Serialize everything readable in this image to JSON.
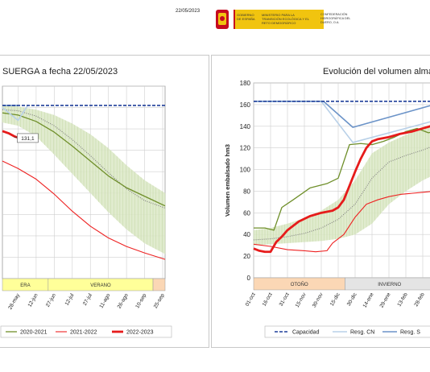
{
  "header": {
    "date": "22/05/2023",
    "logo_line1": "GOBIERNO DE ESPAÑA",
    "logo_line2": "MINISTERIO PARA LA TRANSICIÓN ECOLÓGICA Y EL RETO DEMOGRÁFICO",
    "logo_line3": "CONFEDERACIÓN HIDROGRÁFICA DEL DUERO, O.A."
  },
  "colors": {
    "capacity": "#1f3f9a",
    "resg_cn": "#b8d0e8",
    "resg_s": "#6b93c8",
    "y2020_2021": "#6f8f2a",
    "y2021_2022": "#ee2222",
    "y2022_2023": "#e61b1b",
    "band": "#dbe7c6",
    "median_marker": "#7f7f7f",
    "season_otono": "#fbd7b5",
    "season_invierno": "#e4e4e4",
    "season_verano": "#ffff99"
  },
  "chart_data": [
    {
      "type": "line",
      "title": "SUERGA a fecha 22/05/2023",
      "x_ticks": [
        "28-may",
        "12-jun",
        "27-jun",
        "12-jul",
        "27-jul",
        "11-ago",
        "26-ago",
        "10-sep",
        "25-sep"
      ],
      "x_days": [
        0,
        15,
        30,
        45,
        60,
        75,
        90,
        105,
        120
      ],
      "xlim": [
        -13,
        122
      ],
      "ylim": [
        0,
        180
      ],
      "seasons": [
        {
          "label": "ERA",
          "from": -13,
          "to": 25,
          "color": "#ffff99"
        },
        {
          "label": "VERANO",
          "from": 25,
          "to": 112,
          "color": "#ffff99"
        },
        {
          "label": "",
          "from": 112,
          "to": 122,
          "color": "#fbd7b5"
        }
      ],
      "annotation": "131,1",
      "series": [
        {
          "name": "Capacidad",
          "x": [
            -13,
            122
          ],
          "y": [
            162,
            162
          ]
        },
        {
          "name": "Resg. CN",
          "x": [
            -13,
            0,
            8
          ],
          "y": [
            160,
            148,
            162
          ]
        },
        {
          "name": "Resg. S",
          "x": [
            -13,
            0
          ],
          "y": [
            162,
            162
          ]
        },
        {
          "name": "2020-2021",
          "x": [
            -13,
            0,
            15,
            30,
            45,
            60,
            75,
            90,
            105,
            122
          ],
          "y": [
            155,
            153,
            147,
            137,
            124,
            110,
            96,
            85,
            77,
            68
          ]
        },
        {
          "name": "2021-2022",
          "x": [
            -13,
            0,
            15,
            30,
            45,
            60,
            75,
            90,
            105,
            122
          ],
          "y": [
            110,
            103,
            93,
            79,
            63,
            49,
            38,
            30,
            24,
            18
          ]
        },
        {
          "name": "2022-2023",
          "x": [
            -13,
            -8,
            -3,
            2
          ],
          "y": [
            138,
            136,
            133,
            131.1
          ]
        },
        {
          "name": "band_upper",
          "x": [
            -13,
            0,
            15,
            30,
            45,
            60,
            75,
            90,
            105,
            122
          ],
          "y": [
            162,
            161,
            158,
            153,
            145,
            135,
            122,
            106,
            92,
            80
          ]
        },
        {
          "name": "band_lower",
          "x": [
            -13,
            0,
            15,
            30,
            45,
            60,
            75,
            90,
            105,
            122
          ],
          "y": [
            146,
            143,
            133,
            116,
            98,
            80,
            62,
            46,
            33,
            23
          ]
        },
        {
          "name": "median",
          "x": [
            -13,
            0,
            15,
            30,
            45,
            60,
            75,
            90,
            105,
            122
          ],
          "y": [
            158,
            157,
            152,
            143,
            130,
            115,
            99,
            84,
            73,
            66
          ]
        }
      ],
      "legend": [
        "2020-2021",
        "2021-2022",
        "2022-2023"
      ]
    },
    {
      "type": "line",
      "title": "Evolución del volumen almace",
      "ylabel": "Volumen embalsado hm3",
      "x_ticks": [
        "01-oct",
        "16-oct",
        "31-oct",
        "15-nov",
        "30-nov",
        "15-dic",
        "30-dic",
        "14-ene",
        "29-ene",
        "13-feb",
        "28-feb"
      ],
      "x_days": [
        0,
        15,
        30,
        45,
        60,
        75,
        90,
        105,
        120,
        135,
        150
      ],
      "xlim": [
        0,
        160
      ],
      "ylim": [
        0,
        180
      ],
      "y_ticks": [
        0,
        20,
        40,
        60,
        80,
        100,
        120,
        140,
        160,
        180
      ],
      "seasons": [
        {
          "label": "OTOÑO",
          "from": 0,
          "to": 81,
          "color": "#fbd7b5"
        },
        {
          "label": "INVIERNO",
          "from": 81,
          "to": 160,
          "color": "#e4e4e4"
        }
      ],
      "series": [
        {
          "name": "Capacidad",
          "x": [
            0,
            160
          ],
          "y": [
            163,
            163
          ]
        },
        {
          "name": "Resg. CN",
          "x": [
            0,
            60,
            88,
            160
          ],
          "y": [
            163,
            163,
            125,
            145
          ]
        },
        {
          "name": "Resg. S",
          "x": [
            0,
            62,
            88,
            160
          ],
          "y": [
            163,
            163,
            139,
            160
          ]
        },
        {
          "name": "2020-2021",
          "x": [
            0,
            10,
            18,
            25,
            35,
            50,
            65,
            75,
            85,
            95,
            105,
            115,
            125,
            135,
            145,
            155,
            160
          ],
          "y": [
            46,
            46,
            44,
            65,
            72,
            83,
            87,
            92,
            123,
            124,
            123,
            126,
            130,
            135,
            138,
            134,
            135
          ]
        },
        {
          "name": "2021-2022",
          "x": [
            0,
            15,
            30,
            45,
            55,
            65,
            70,
            80,
            90,
            100,
            110,
            120,
            130,
            140,
            150,
            160
          ],
          "y": [
            31,
            29,
            26,
            25,
            24,
            25,
            32,
            40,
            56,
            68,
            72,
            75,
            77,
            78,
            79,
            80
          ]
        },
        {
          "name": "2022-2023",
          "x": [
            0,
            5,
            10,
            15,
            20,
            25,
            30,
            40,
            50,
            60,
            70,
            75,
            80,
            85,
            90,
            95,
            100,
            105,
            110,
            120,
            130,
            140,
            150,
            160
          ],
          "y": [
            27,
            25,
            24,
            24,
            33,
            38,
            44,
            52,
            57,
            60,
            62,
            65,
            72,
            85,
            98,
            110,
            120,
            126,
            128,
            130,
            133,
            135,
            138,
            141
          ]
        },
        {
          "name": "band_upper",
          "x": [
            0,
            15,
            30,
            45,
            60,
            75,
            90,
            105,
            120,
            135,
            150,
            160
          ],
          "y": [
            44,
            46,
            50,
            55,
            62,
            72,
            90,
            115,
            125,
            132,
            138,
            140
          ]
        },
        {
          "name": "band_lower",
          "x": [
            0,
            15,
            30,
            45,
            60,
            75,
            90,
            105,
            120,
            135,
            150,
            160
          ],
          "y": [
            30,
            31,
            32,
            33,
            34,
            36,
            40,
            50,
            68,
            80,
            90,
            95
          ]
        },
        {
          "name": "median",
          "x": [
            0,
            15,
            30,
            45,
            60,
            75,
            90,
            105,
            120,
            135,
            150,
            160
          ],
          "y": [
            35,
            36,
            38,
            41,
            46,
            54,
            68,
            92,
            107,
            113,
            118,
            122
          ]
        }
      ],
      "legend": [
        "Capacidad",
        "Resg. CN",
        "Resg. S"
      ]
    }
  ]
}
